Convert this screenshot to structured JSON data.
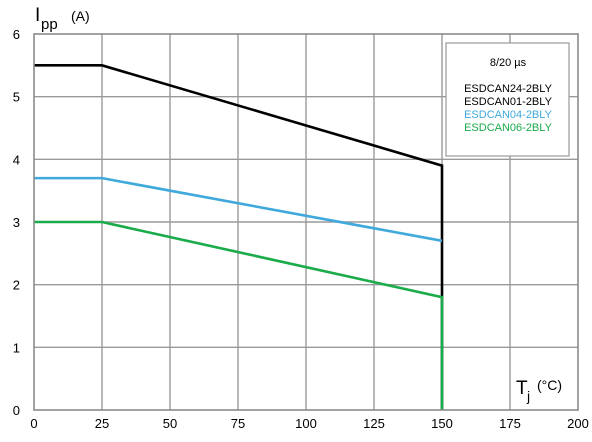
{
  "chart_data": {
    "type": "line",
    "ylabel": {
      "main": "I",
      "sub": "pp",
      "unit": "(A)"
    },
    "xlabel": {
      "main": "T",
      "sub": "j",
      "unit": "(°C)"
    },
    "xlim": [
      0,
      200
    ],
    "ylim": [
      0,
      6
    ],
    "xticks": [
      0,
      25,
      50,
      75,
      100,
      125,
      150,
      175,
      200
    ],
    "yticks": [
      0,
      1,
      2,
      3,
      4,
      5,
      6
    ],
    "grid": true,
    "legend": {
      "placement": "top-right",
      "title": "8/20 µs",
      "entries": [
        {
          "label": "ESDCAN24-2BLY",
          "color": "#000000"
        },
        {
          "label": "ESDCAN01-2BLY",
          "color": "#000000"
        },
        {
          "label": "ESDCAN04-2BLY",
          "color": "#3fa9db"
        },
        {
          "label": "ESDCAN06-2BLY",
          "color": "#1aab4a"
        }
      ]
    },
    "series": [
      {
        "name": "ESDCAN24-2BLY / ESDCAN01-2BLY",
        "color": "#000000",
        "x": [
          0,
          25,
          150,
          150
        ],
        "y": [
          5.5,
          5.5,
          3.9,
          0
        ]
      },
      {
        "name": "ESDCAN04-2BLY",
        "color": "#3fa9db",
        "x": [
          0,
          25,
          150
        ],
        "y": [
          3.7,
          3.7,
          2.7
        ]
      },
      {
        "name": "ESDCAN06-2BLY",
        "color": "#1aab4a",
        "x": [
          0,
          25,
          150,
          150
        ],
        "y": [
          3.0,
          3.0,
          1.8,
          0
        ]
      }
    ]
  }
}
